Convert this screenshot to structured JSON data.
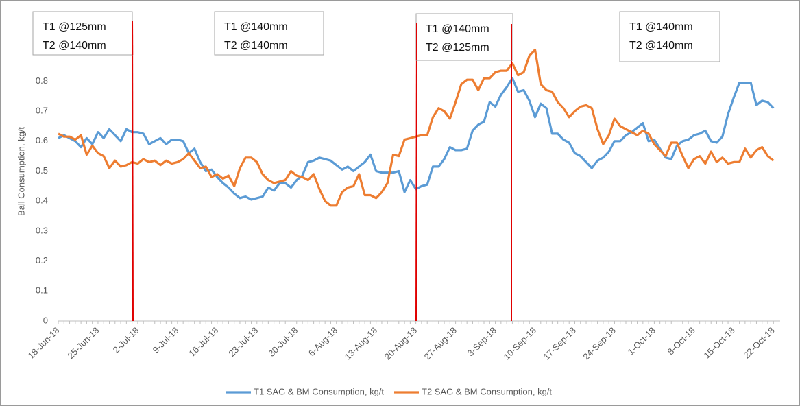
{
  "chart_data": {
    "type": "line",
    "y_label": "Ball Consumption, kg/t",
    "ylim": [
      0,
      1
    ],
    "yticks": [
      0,
      0.1,
      0.2,
      0.3,
      0.4,
      0.5,
      0.6,
      0.7,
      0.8,
      0.9,
      1
    ],
    "grid": false,
    "legend": "bottom",
    "categories": [
      "18-Jun-18",
      null,
      null,
      null,
      null,
      null,
      null,
      "25-Jun-18",
      null,
      null,
      null,
      null,
      null,
      null,
      "2-Jul-18",
      null,
      null,
      null,
      null,
      null,
      null,
      "9-Jul-18",
      null,
      null,
      null,
      null,
      null,
      null,
      "16-Jul-18",
      null,
      null,
      null,
      null,
      null,
      null,
      "23-Jul-18",
      null,
      null,
      null,
      null,
      null,
      null,
      "30-Jul-18",
      null,
      null,
      null,
      null,
      null,
      null,
      "6-Aug-18",
      null,
      null,
      null,
      null,
      null,
      null,
      "13-Aug-18",
      null,
      null,
      null,
      null,
      null,
      null,
      "20-Aug-18",
      null,
      null,
      null,
      null,
      null,
      null,
      "27-Aug-18",
      null,
      null,
      null,
      null,
      null,
      null,
      "3-Sep-18",
      null,
      null,
      null,
      null,
      null,
      null,
      "10-Sep-18",
      null,
      null,
      null,
      null,
      null,
      null,
      "17-Sep-18",
      null,
      null,
      null,
      null,
      null,
      null,
      "24-Sep-18",
      null,
      null,
      null,
      null,
      null,
      null,
      "1-Oct-18",
      null,
      null,
      null,
      null,
      null,
      null,
      "8-Oct-18",
      null,
      null,
      null,
      null,
      null,
      null,
      "15-Oct-18",
      null,
      null,
      null,
      null,
      null,
      null,
      "22-Oct-18"
    ],
    "series": [
      {
        "name": "T1 SAG & BM Consumption, kg/t",
        "color": "#5b9bd5",
        "values": [
          0.61,
          0.62,
          0.61,
          0.6,
          0.58,
          0.61,
          0.59,
          0.63,
          0.61,
          0.64,
          0.62,
          0.6,
          0.64,
          0.63,
          0.63,
          0.625,
          0.59,
          0.6,
          0.61,
          0.59,
          0.605,
          0.605,
          0.6,
          0.56,
          0.575,
          0.53,
          0.5,
          0.505,
          0.48,
          0.46,
          0.445,
          0.425,
          0.41,
          0.415,
          0.405,
          0.41,
          0.415,
          0.445,
          0.435,
          0.46,
          0.46,
          0.445,
          0.47,
          0.485,
          0.53,
          0.535,
          0.545,
          0.54,
          0.535,
          0.52,
          0.505,
          0.515,
          0.5,
          0.515,
          0.53,
          0.555,
          0.5,
          0.495,
          0.495,
          0.495,
          0.5,
          0.43,
          0.47,
          0.44,
          0.45,
          0.455,
          0.515,
          0.515,
          0.54,
          0.58,
          0.57,
          0.57,
          0.575,
          0.635,
          0.655,
          0.665,
          0.73,
          0.715,
          0.755,
          0.78,
          0.81,
          0.765,
          0.77,
          0.735,
          0.68,
          0.725,
          0.71,
          0.625,
          0.625,
          0.605,
          0.595,
          0.56,
          0.55,
          0.53,
          0.51,
          0.535,
          0.545,
          0.565,
          0.6,
          0.6,
          0.62,
          0.63,
          0.645,
          0.66,
          0.6,
          0.605,
          0.575,
          0.545,
          0.54,
          0.585,
          0.6,
          0.605,
          0.62,
          0.625,
          0.635,
          0.6,
          0.595,
          0.615,
          0.69,
          0.745,
          0.795,
          0.795,
          0.795,
          0.72,
          0.735,
          0.73,
          0.71
        ]
      },
      {
        "name": "T2 SAG & BM Consumption, kg/t",
        "color": "#ed7d31",
        "values": [
          0.625,
          0.615,
          0.615,
          0.605,
          0.62,
          0.555,
          0.585,
          0.56,
          0.55,
          0.51,
          0.535,
          0.515,
          0.52,
          0.53,
          0.525,
          0.54,
          0.53,
          0.535,
          0.52,
          0.535,
          0.525,
          0.53,
          0.54,
          0.56,
          0.535,
          0.51,
          0.515,
          0.48,
          0.49,
          0.475,
          0.485,
          0.45,
          0.51,
          0.545,
          0.545,
          0.53,
          0.49,
          0.47,
          0.46,
          0.465,
          0.47,
          0.5,
          0.485,
          0.48,
          0.47,
          0.49,
          0.44,
          0.4,
          0.385,
          0.385,
          0.43,
          0.445,
          0.45,
          0.49,
          0.42,
          0.42,
          0.41,
          0.43,
          0.46,
          0.555,
          0.55,
          0.605,
          0.61,
          0.615,
          0.62,
          0.62,
          0.68,
          0.71,
          0.7,
          0.675,
          0.73,
          0.79,
          0.805,
          0.805,
          0.77,
          0.81,
          0.81,
          0.83,
          0.835,
          0.835,
          0.86,
          0.82,
          0.83,
          0.885,
          0.905,
          0.79,
          0.77,
          0.765,
          0.73,
          0.71,
          0.68,
          0.7,
          0.715,
          0.72,
          0.71,
          0.64,
          0.59,
          0.62,
          0.675,
          0.65,
          0.64,
          0.63,
          0.62,
          0.635,
          0.625,
          0.59,
          0.57,
          0.55,
          0.595,
          0.595,
          0.55,
          0.51,
          0.54,
          0.55,
          0.525,
          0.565,
          0.53,
          0.545,
          0.525,
          0.53,
          0.53,
          0.575,
          0.545,
          0.57,
          0.58,
          0.55,
          0.535
        ]
      }
    ],
    "annotations": [
      {
        "lines": [
          "T1 @125mm",
          "T2 @140mm"
        ]
      },
      {
        "lines": [
          "T1 @140mm",
          "T2 @140mm"
        ]
      },
      {
        "lines": [
          "T1 @140mm",
          "T2 @125mm"
        ]
      },
      {
        "lines": [
          "T1 @140mm",
          "T2 @140mm"
        ]
      }
    ]
  }
}
